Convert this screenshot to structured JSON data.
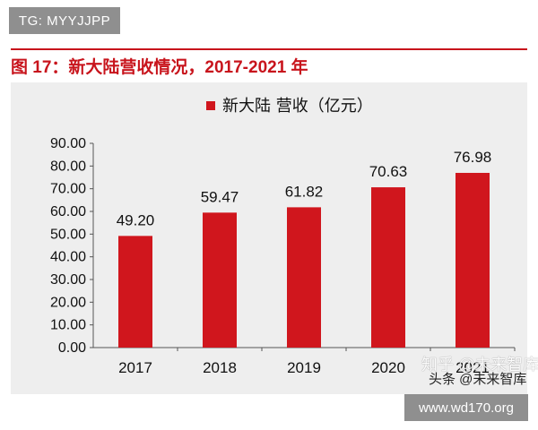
{
  "top_tag": "TG: MYYJJPP",
  "figure_title": "图 17：新大陆营收情况，2017-2021 年",
  "watermarks": {
    "zhihu": "知乎 @未来智库",
    "toutiao": "头条 @未来智库"
  },
  "bottom_tag": "www.wd170.org",
  "colors": {
    "bar": "#d0161d",
    "title": "#c8141c",
    "chart_bg": "#eeeeee"
  },
  "chart_data": {
    "type": "bar",
    "categories": [
      "2017",
      "2018",
      "2019",
      "2020",
      "2021"
    ],
    "series": [
      {
        "name": "新大陆 营收（亿元）",
        "values": [
          49.2,
          59.47,
          61.82,
          70.63,
          76.98
        ]
      }
    ],
    "data_labels": [
      "49.20",
      "59.47",
      "61.82",
      "70.63",
      "76.98"
    ],
    "ylim": [
      0,
      90
    ],
    "yticks": [
      "0.00",
      "10.00",
      "20.00",
      "30.00",
      "40.00",
      "50.00",
      "60.00",
      "70.00",
      "80.00",
      "90.00"
    ],
    "xlabel": "",
    "ylabel": "",
    "legend": "top-center",
    "grid": false
  }
}
